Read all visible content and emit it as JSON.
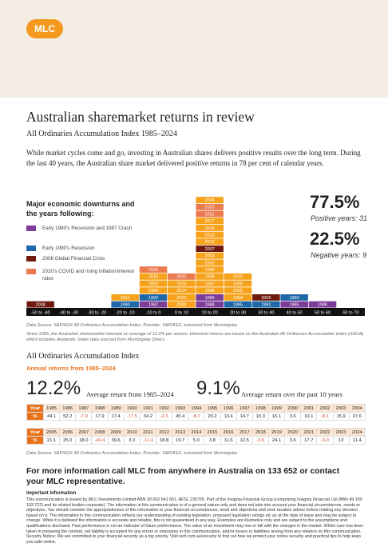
{
  "logo": "MLC",
  "title": "Australian sharemarket returns in review",
  "subtitle": "All Ordinaries Accumulation Index 1985–2024",
  "intro": "While market cycles come and go, investing in Australian shares delivers positive results over the long term. During the last 40 years, the Australian share market delivered positive returns in 78 per cent of calendar years.",
  "legend": {
    "heading": "Major economic downturns and the years following:",
    "items": [
      {
        "label": "Early 1980's Recession and 1987 Crash",
        "color": "#7d3c98"
      },
      {
        "label": "Early 1990's Recession",
        "color": "#1f67a8"
      },
      {
        "label": "2008 Global Financial Crisis",
        "color": "#6e1a0f"
      },
      {
        "label": "2020's COVID and rising inflation/interest rates",
        "color": "#ec7a4f"
      }
    ]
  },
  "histogram": {
    "default_color": "#f7a21b",
    "bins": [
      {
        "label": "-50 to -40",
        "blocks": [
          {
            "year": "2008",
            "color": "#6e1a0f"
          }
        ]
      },
      {
        "label": "-40 to -30",
        "blocks": []
      },
      {
        "label": "-30 to -20",
        "blocks": []
      },
      {
        "label": "-20 to -10",
        "blocks": [
          {
            "year": "1990",
            "color": "#1f67a8"
          },
          {
            "year": "2011"
          }
        ]
      },
      {
        "label": "-10 to 0",
        "blocks": [
          {
            "year": "1987",
            "color": "#7d3c98"
          },
          {
            "year": "1992",
            "color": "#1f67a8"
          },
          {
            "year": "1994"
          },
          {
            "year": "2002"
          },
          {
            "year": "2018"
          },
          {
            "year": "2022",
            "color": "#ec7a4f"
          }
        ]
      },
      {
        "label": "0 to 10",
        "blocks": [
          {
            "year": "2000"
          },
          {
            "year": "2010"
          },
          {
            "year": "2014"
          },
          {
            "year": "2015"
          },
          {
            "year": "2020",
            "color": "#ec7a4f"
          }
        ]
      },
      {
        "label": "10 to 20",
        "blocks": [
          {
            "year": "1988",
            "color": "#7d3c98"
          },
          {
            "year": "1989",
            "color": "#7d3c98"
          },
          {
            "year": "1996"
          },
          {
            "year": "1997"
          },
          {
            "year": "1998"
          },
          {
            "year": "1999"
          },
          {
            "year": "2001"
          },
          {
            "year": "2003"
          },
          {
            "year": "2007",
            "color": "#6e1a0f"
          },
          {
            "year": "2012"
          },
          {
            "year": "2013"
          },
          {
            "year": "2016"
          },
          {
            "year": "2017"
          },
          {
            "year": "2021",
            "color": "#ec7a4f"
          },
          {
            "year": "2023",
            "color": "#ec7a4f"
          },
          {
            "year": "2024"
          }
        ]
      },
      {
        "label": "20 to 30",
        "blocks": [
          {
            "year": "1995",
            "color": "#1f67a8"
          },
          {
            "year": "2004"
          },
          {
            "year": "2005"
          },
          {
            "year": "2006"
          },
          {
            "year": "2019"
          }
        ]
      },
      {
        "label": "30 to 40",
        "blocks": [
          {
            "year": "1991",
            "color": "#1f67a8"
          },
          {
            "year": "2009",
            "color": "#6e1a0f"
          }
        ]
      },
      {
        "label": "40 to 50",
        "blocks": [
          {
            "year": "1985",
            "color": "#7d3c98"
          },
          {
            "year": "1993",
            "color": "#1f67a8"
          }
        ]
      },
      {
        "label": "50 to 60",
        "blocks": [
          {
            "year": "1986",
            "color": "#7d3c98"
          }
        ]
      },
      {
        "label": "60 to 70",
        "blocks": []
      }
    ]
  },
  "stats": [
    {
      "value": "77.5%",
      "label": "Positive years: 31"
    },
    {
      "value": "22.5%",
      "label": "Negative years: 9"
    }
  ],
  "source1": "Data Source: S&P/ASX All Ordinaries Accumulation Index, Provider: S&P/ASX, extracted from Morningstar.",
  "note": "Since 1985, the Australian sharemarket returned an average of 12.2% per annum. Historical returns are based on the Australian All Ordinaries Accumulation Index (XAOA) which includes dividends. Index data sourced from Morningstar Direct.",
  "section_title": "All Ordinaries Accumulation Index",
  "section_subtitle": "Annual returns from 1985–2024",
  "averages": [
    {
      "value": "12.2%",
      "label": "Average return from 1985–2024"
    },
    {
      "value": "9.1%",
      "label": "Average return over the past 10 years"
    }
  ],
  "tables": [
    {
      "rows": [
        [
          "Year",
          "1985",
          "1986",
          "1987",
          "1988",
          "1989",
          "1990",
          "1991",
          "1992",
          "1993",
          "1994",
          "1995",
          "1996",
          "1997",
          "1998",
          "1999",
          "2000",
          "2001",
          "2002",
          "2003",
          "2004"
        ],
        [
          "%",
          "44.1",
          "52.2",
          "-7.9",
          "17.9",
          "17.4",
          "-17.5",
          "34.2",
          "-2.3",
          "45.4",
          "-8.7",
          "20.2",
          "13.4",
          "14.7",
          "10.3",
          "16.1",
          "3.6",
          "10.1",
          "-8.1",
          "15.9",
          "27.6"
        ]
      ]
    },
    {
      "rows": [
        [
          "Year",
          "2005",
          "2006",
          "2007",
          "2008",
          "2009",
          "2010",
          "2011",
          "2012",
          "2013",
          "2014",
          "2015",
          "2016",
          "2017",
          "2018",
          "2019",
          "2020",
          "2021",
          "2022",
          "2023",
          "2024"
        ],
        [
          "%",
          "21.1",
          "25.0",
          "18.0",
          "-40.4",
          "39.6",
          "3.3",
          "-11.4",
          "18.8",
          "19.7",
          "5.0",
          "3.8",
          "11.6",
          "12.5",
          "-3.5",
          "24.1",
          "3.6",
          "17.7",
          "-3.0",
          "13",
          "11.4"
        ]
      ]
    }
  ],
  "source2": "Data Source: S&P/ASX All Ordinaries Accumulation Index, Provider: S&P/ASX, extracted from Morningstar.",
  "contact": "For more information call MLC from anywhere in Australia on 133 652 or contact your MLC representative.",
  "important_heading": "Important information",
  "important_text": "This communication is issued by MLC Investments Limited ABN 30 002 641 661, AFSL 230705. Part of the Insignia Financial Group (comprising Insignia Financial Ltd (ABN 49 100 103 722) and its related bodies corporate). The information in this communication is of a general nature only and does not take into account your financial circumstances, needs or objectives. You should consider the appropriateness of this information to your financial circumstances, need and objectives and seek taxation advice before making any decision based on it. The information in this communication reflects our understanding of existing legislation, proposed legislation rulings etc as at the date of issue and may be subject to change. While it is believed the information is accurate and reliable, this is not guaranteed in any way. Examples are illustrative only and are subject to the assumptions and qualifications disclosed. Past performance is not an indicator of future performance. The value of an investment may rise or fall with the changes in the market. Whilst care has been taken in preparing the content, not liability is accepted for any errors or omissions in this communication, and/or losses or liabilities arising from any reliance on this communication. Security Notice: We are committed to your financial security as a top priority. Visit ioof.com.au/security to find out how we protect your online security and practical tips to help keep you safe online."
}
